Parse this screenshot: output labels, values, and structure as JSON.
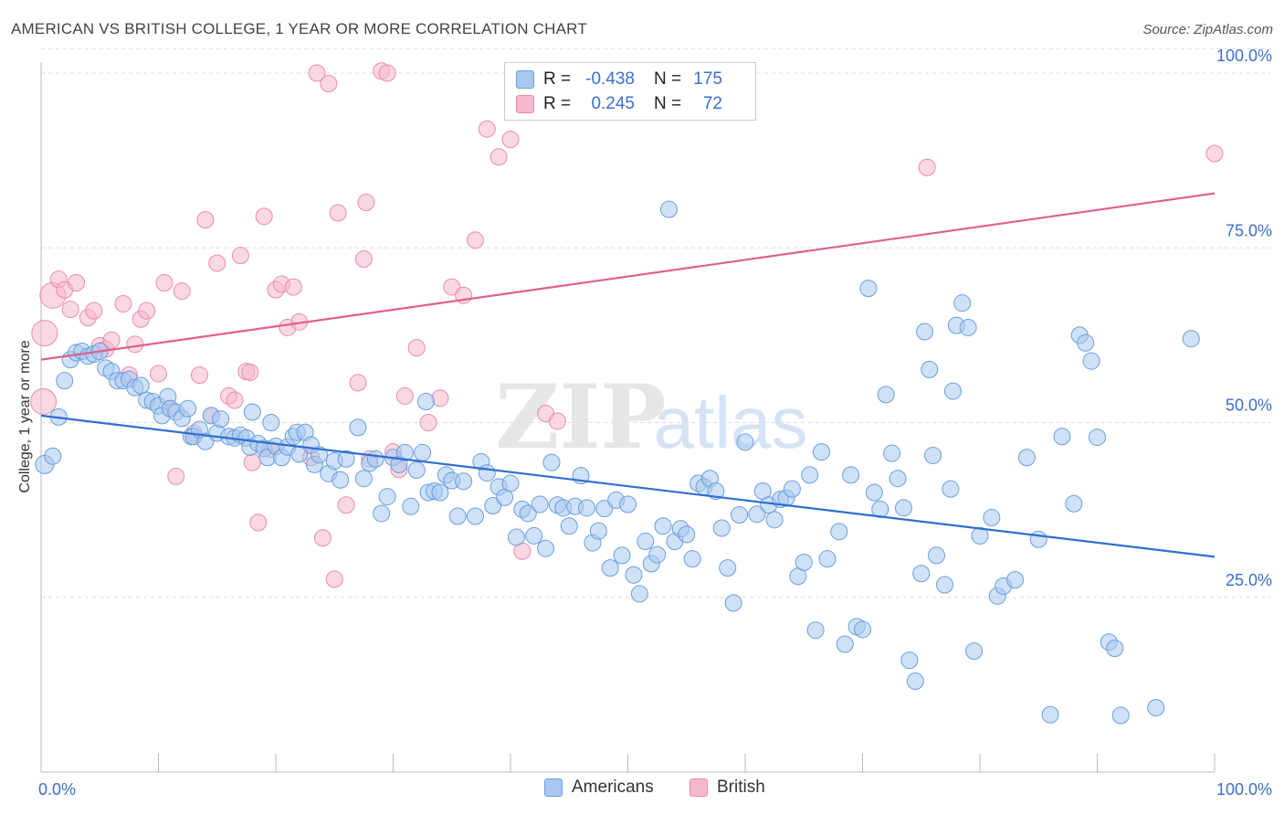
{
  "title": "AMERICAN VS BRITISH COLLEGE, 1 YEAR OR MORE CORRELATION CHART",
  "source": "Source: ZipAtlas.com",
  "watermark": {
    "zip": "ZIP",
    "atlas": "atlas"
  },
  "legend": {
    "rows": [
      {
        "r_label": "R =",
        "r_value": "-0.438",
        "n_label": "N =",
        "n_value": "175"
      },
      {
        "r_label": "R =",
        "r_value": "0.245",
        "n_label": "N =",
        "n_value": "72"
      }
    ]
  },
  "bottom_legend": {
    "americans": "Americans",
    "british": "British"
  },
  "colors": {
    "americans_fill": "#a8c8f0",
    "americans_stroke": "#6b9edb",
    "americans_line": "#2e6fd1",
    "british_fill": "#f6b8cc",
    "british_stroke": "#ea8bab",
    "british_line": "#e0608a",
    "tick_label": "#3a6fd0",
    "grid": "#dddddd"
  },
  "chart_data": {
    "type": "scatter",
    "title": "AMERICAN VS BRITISH COLLEGE, 1 YEAR OR MORE CORRELATION CHART",
    "xlabel": "",
    "ylabel": "College, 1 year or more",
    "xlim": [
      0,
      100
    ],
    "ylim": [
      0,
      104
    ],
    "x_tick_labels": {
      "0": "0.0%",
      "100": "100.0%"
    },
    "y_tick_labels": {
      "25": "25.0%",
      "50": "50.0%",
      "75": "75.0%",
      "100": "100.0%"
    },
    "grid": "horizontal dashed",
    "legend_placement": "top-center",
    "series": [
      {
        "name": "Americans",
        "r": -0.438,
        "n": 175,
        "trend": {
          "x": [
            0,
            100
          ],
          "y": [
            51,
            30.8
          ]
        },
        "points": [
          [
            0.3,
            44
          ],
          [
            1,
            45.2
          ],
          [
            1.5,
            50.8
          ],
          [
            2,
            56
          ],
          [
            2.5,
            59
          ],
          [
            3,
            60
          ],
          [
            3.5,
            60.2
          ],
          [
            4,
            59.5
          ],
          [
            4.5,
            59.8
          ],
          [
            5,
            60.2
          ],
          [
            5.5,
            57.8
          ],
          [
            6,
            57.3
          ],
          [
            6.5,
            56
          ],
          [
            7,
            56
          ],
          [
            7.5,
            56.2
          ],
          [
            8,
            55
          ],
          [
            8.5,
            55.3
          ],
          [
            9,
            53.2
          ],
          [
            9.5,
            53
          ],
          [
            10,
            52.4
          ],
          [
            10.3,
            51
          ],
          [
            10.8,
            53.7
          ],
          [
            11,
            52
          ],
          [
            11.5,
            51.5
          ],
          [
            12,
            50.6
          ],
          [
            12.5,
            52
          ],
          [
            12.8,
            48
          ],
          [
            13,
            48
          ],
          [
            13.5,
            49
          ],
          [
            14,
            47.3
          ],
          [
            14.5,
            51
          ],
          [
            15,
            48.5
          ],
          [
            15.3,
            50.5
          ],
          [
            16,
            48
          ],
          [
            16.5,
            47.8
          ],
          [
            17,
            48.2
          ],
          [
            17.5,
            47.8
          ],
          [
            17.8,
            46.5
          ],
          [
            18,
            51.5
          ],
          [
            18.5,
            47
          ],
          [
            19,
            46.3
          ],
          [
            19.3,
            45
          ],
          [
            19.6,
            50
          ],
          [
            20,
            46.6
          ],
          [
            20.5,
            45
          ],
          [
            21,
            46.5
          ],
          [
            21.5,
            48
          ],
          [
            21.8,
            48.6
          ],
          [
            22,
            45.5
          ],
          [
            22.5,
            48.6
          ],
          [
            23,
            46.8
          ],
          [
            23.3,
            44
          ],
          [
            23.7,
            45.4
          ],
          [
            24.5,
            42.7
          ],
          [
            25,
            44.5
          ],
          [
            25.5,
            41.8
          ],
          [
            26,
            44.8
          ],
          [
            27,
            49.3
          ],
          [
            27.5,
            42
          ],
          [
            28,
            44.2
          ],
          [
            28.5,
            44.8
          ],
          [
            29,
            37
          ],
          [
            29.5,
            39.4
          ],
          [
            30,
            45
          ],
          [
            30.5,
            44
          ],
          [
            31,
            45.7
          ],
          [
            31.5,
            38
          ],
          [
            32,
            43.2
          ],
          [
            32.5,
            45.7
          ],
          [
            32.8,
            53
          ],
          [
            33,
            40
          ],
          [
            33.5,
            40.2
          ],
          [
            34,
            40
          ],
          [
            34.5,
            42.5
          ],
          [
            35,
            41.7
          ],
          [
            35.5,
            36.6
          ],
          [
            36,
            41.6
          ],
          [
            37,
            36.6
          ],
          [
            37.5,
            44.4
          ],
          [
            38,
            42.8
          ],
          [
            38.5,
            38.1
          ],
          [
            39,
            40.8
          ],
          [
            39.5,
            39.3
          ],
          [
            40,
            41.3
          ],
          [
            40.5,
            33.6
          ],
          [
            41,
            37.6
          ],
          [
            41.5,
            37
          ],
          [
            42,
            33.8
          ],
          [
            42.5,
            38.3
          ],
          [
            43,
            32
          ],
          [
            43.5,
            44.3
          ],
          [
            44,
            38.2
          ],
          [
            44.5,
            37.8
          ],
          [
            45,
            35.2
          ],
          [
            45.5,
            38
          ],
          [
            46,
            42.4
          ],
          [
            46.5,
            37.8
          ],
          [
            47,
            32.8
          ],
          [
            47.5,
            34.5
          ],
          [
            48,
            37.7
          ],
          [
            48.5,
            29.2
          ],
          [
            49,
            38.9
          ],
          [
            49.5,
            31
          ],
          [
            50,
            38.3
          ],
          [
            50.5,
            28.2
          ],
          [
            51,
            25.5
          ],
          [
            51.5,
            33
          ],
          [
            52,
            29.8
          ],
          [
            52.5,
            31.1
          ],
          [
            53,
            35.2
          ],
          [
            53.5,
            80.5
          ],
          [
            54,
            33
          ],
          [
            54.5,
            34.8
          ],
          [
            55,
            34
          ],
          [
            55.5,
            30.5
          ],
          [
            56,
            41.3
          ],
          [
            56.5,
            40.8
          ],
          [
            57,
            42
          ],
          [
            57.5,
            40.2
          ],
          [
            58,
            34.9
          ],
          [
            58.5,
            29.2
          ],
          [
            59,
            24.2
          ],
          [
            59.5,
            36.8
          ],
          [
            60,
            47.2
          ],
          [
            61,
            36.9
          ],
          [
            61.5,
            40.2
          ],
          [
            62,
            38.2
          ],
          [
            62.5,
            36.1
          ],
          [
            63,
            39
          ],
          [
            63.5,
            39.2
          ],
          [
            64,
            40.5
          ],
          [
            64.5,
            28
          ],
          [
            65,
            30
          ],
          [
            65.5,
            42.5
          ],
          [
            66,
            20.3
          ],
          [
            66.5,
            45.8
          ],
          [
            67,
            30.5
          ],
          [
            68,
            34.4
          ],
          [
            68.5,
            18.3
          ],
          [
            69,
            42.5
          ],
          [
            69.5,
            20.8
          ],
          [
            70,
            20.4
          ],
          [
            70.5,
            69.2
          ],
          [
            71,
            40
          ],
          [
            71.5,
            37.6
          ],
          [
            72,
            54
          ],
          [
            72.5,
            45.6
          ],
          [
            73,
            42
          ],
          [
            73.5,
            37.8
          ],
          [
            74,
            16
          ],
          [
            74.5,
            13
          ],
          [
            75,
            28.4
          ],
          [
            75.3,
            63
          ],
          [
            75.7,
            57.6
          ],
          [
            76,
            45.3
          ],
          [
            76.3,
            31
          ],
          [
            77,
            26.8
          ],
          [
            77.5,
            40.5
          ],
          [
            77.7,
            54.5
          ],
          [
            78,
            63.9
          ],
          [
            78.5,
            67.1
          ],
          [
            79,
            63.6
          ],
          [
            79.5,
            17.3
          ],
          [
            80,
            33.8
          ],
          [
            81,
            36.4
          ],
          [
            81.5,
            25.2
          ],
          [
            82,
            26.6
          ],
          [
            83,
            27.5
          ],
          [
            84,
            45
          ],
          [
            85,
            33.3
          ],
          [
            86,
            8.2
          ],
          [
            87,
            48
          ],
          [
            88,
            38.4
          ],
          [
            88.5,
            62.5
          ],
          [
            89,
            61.4
          ],
          [
            89.5,
            58.8
          ],
          [
            90,
            47.9
          ],
          [
            91,
            18.6
          ],
          [
            91.5,
            17.7
          ],
          [
            92,
            8.1
          ],
          [
            95,
            9.2
          ],
          [
            98,
            62
          ]
        ]
      },
      {
        "name": "British",
        "r": 0.245,
        "n": 72,
        "trend": {
          "x": [
            0,
            100
          ],
          "y": [
            59,
            82.8
          ]
        },
        "points": [
          [
            0.2,
            53
          ],
          [
            0.3,
            62.8
          ],
          [
            1,
            68.2
          ],
          [
            1.5,
            70.5
          ],
          [
            2,
            69
          ],
          [
            2.5,
            66.2
          ],
          [
            3,
            70
          ],
          [
            4,
            65
          ],
          [
            4.5,
            66
          ],
          [
            5,
            61
          ],
          [
            5.5,
            60.5
          ],
          [
            6,
            61.8
          ],
          [
            7,
            67
          ],
          [
            7.5,
            56.8
          ],
          [
            8,
            61.2
          ],
          [
            8.5,
            64.8
          ],
          [
            9,
            66
          ],
          [
            10,
            57
          ],
          [
            10.5,
            70
          ],
          [
            11,
            52
          ],
          [
            11.5,
            42.3
          ],
          [
            12,
            68.8
          ],
          [
            13,
            48.5
          ],
          [
            13.5,
            56.8
          ],
          [
            14,
            79
          ],
          [
            14.5,
            51
          ],
          [
            15,
            72.8
          ],
          [
            16,
            53.8
          ],
          [
            16.5,
            53.2
          ],
          [
            17,
            73.9
          ],
          [
            17.5,
            57.3
          ],
          [
            17.8,
            57.2
          ],
          [
            18,
            44.3
          ],
          [
            18.5,
            35.7
          ],
          [
            19,
            79.5
          ],
          [
            19.5,
            46.2
          ],
          [
            20,
            69
          ],
          [
            20.5,
            69.8
          ],
          [
            21,
            63.6
          ],
          [
            21.5,
            69.4
          ],
          [
            22,
            64.4
          ],
          [
            23,
            45
          ],
          [
            23.5,
            100
          ],
          [
            24,
            33.5
          ],
          [
            24.5,
            98.5
          ],
          [
            25,
            27.6
          ],
          [
            25.3,
            80
          ],
          [
            26,
            38.2
          ],
          [
            27,
            55.7
          ],
          [
            27.5,
            73.4
          ],
          [
            27.7,
            81.5
          ],
          [
            28,
            44.8
          ],
          [
            29,
            100.3
          ],
          [
            29.5,
            100
          ],
          [
            30,
            45.8
          ],
          [
            30.5,
            43.3
          ],
          [
            31,
            53.8
          ],
          [
            32,
            60.7
          ],
          [
            33,
            50
          ],
          [
            34,
            53.5
          ],
          [
            35,
            69.4
          ],
          [
            36,
            68.2
          ],
          [
            37,
            76.1
          ],
          [
            38,
            92
          ],
          [
            39,
            88
          ],
          [
            40,
            90.5
          ],
          [
            41,
            31.6
          ],
          [
            43,
            51.3
          ],
          [
            44,
            50.2
          ],
          [
            45,
            100
          ],
          [
            75.5,
            86.5
          ],
          [
            100,
            88.5
          ]
        ]
      }
    ]
  }
}
